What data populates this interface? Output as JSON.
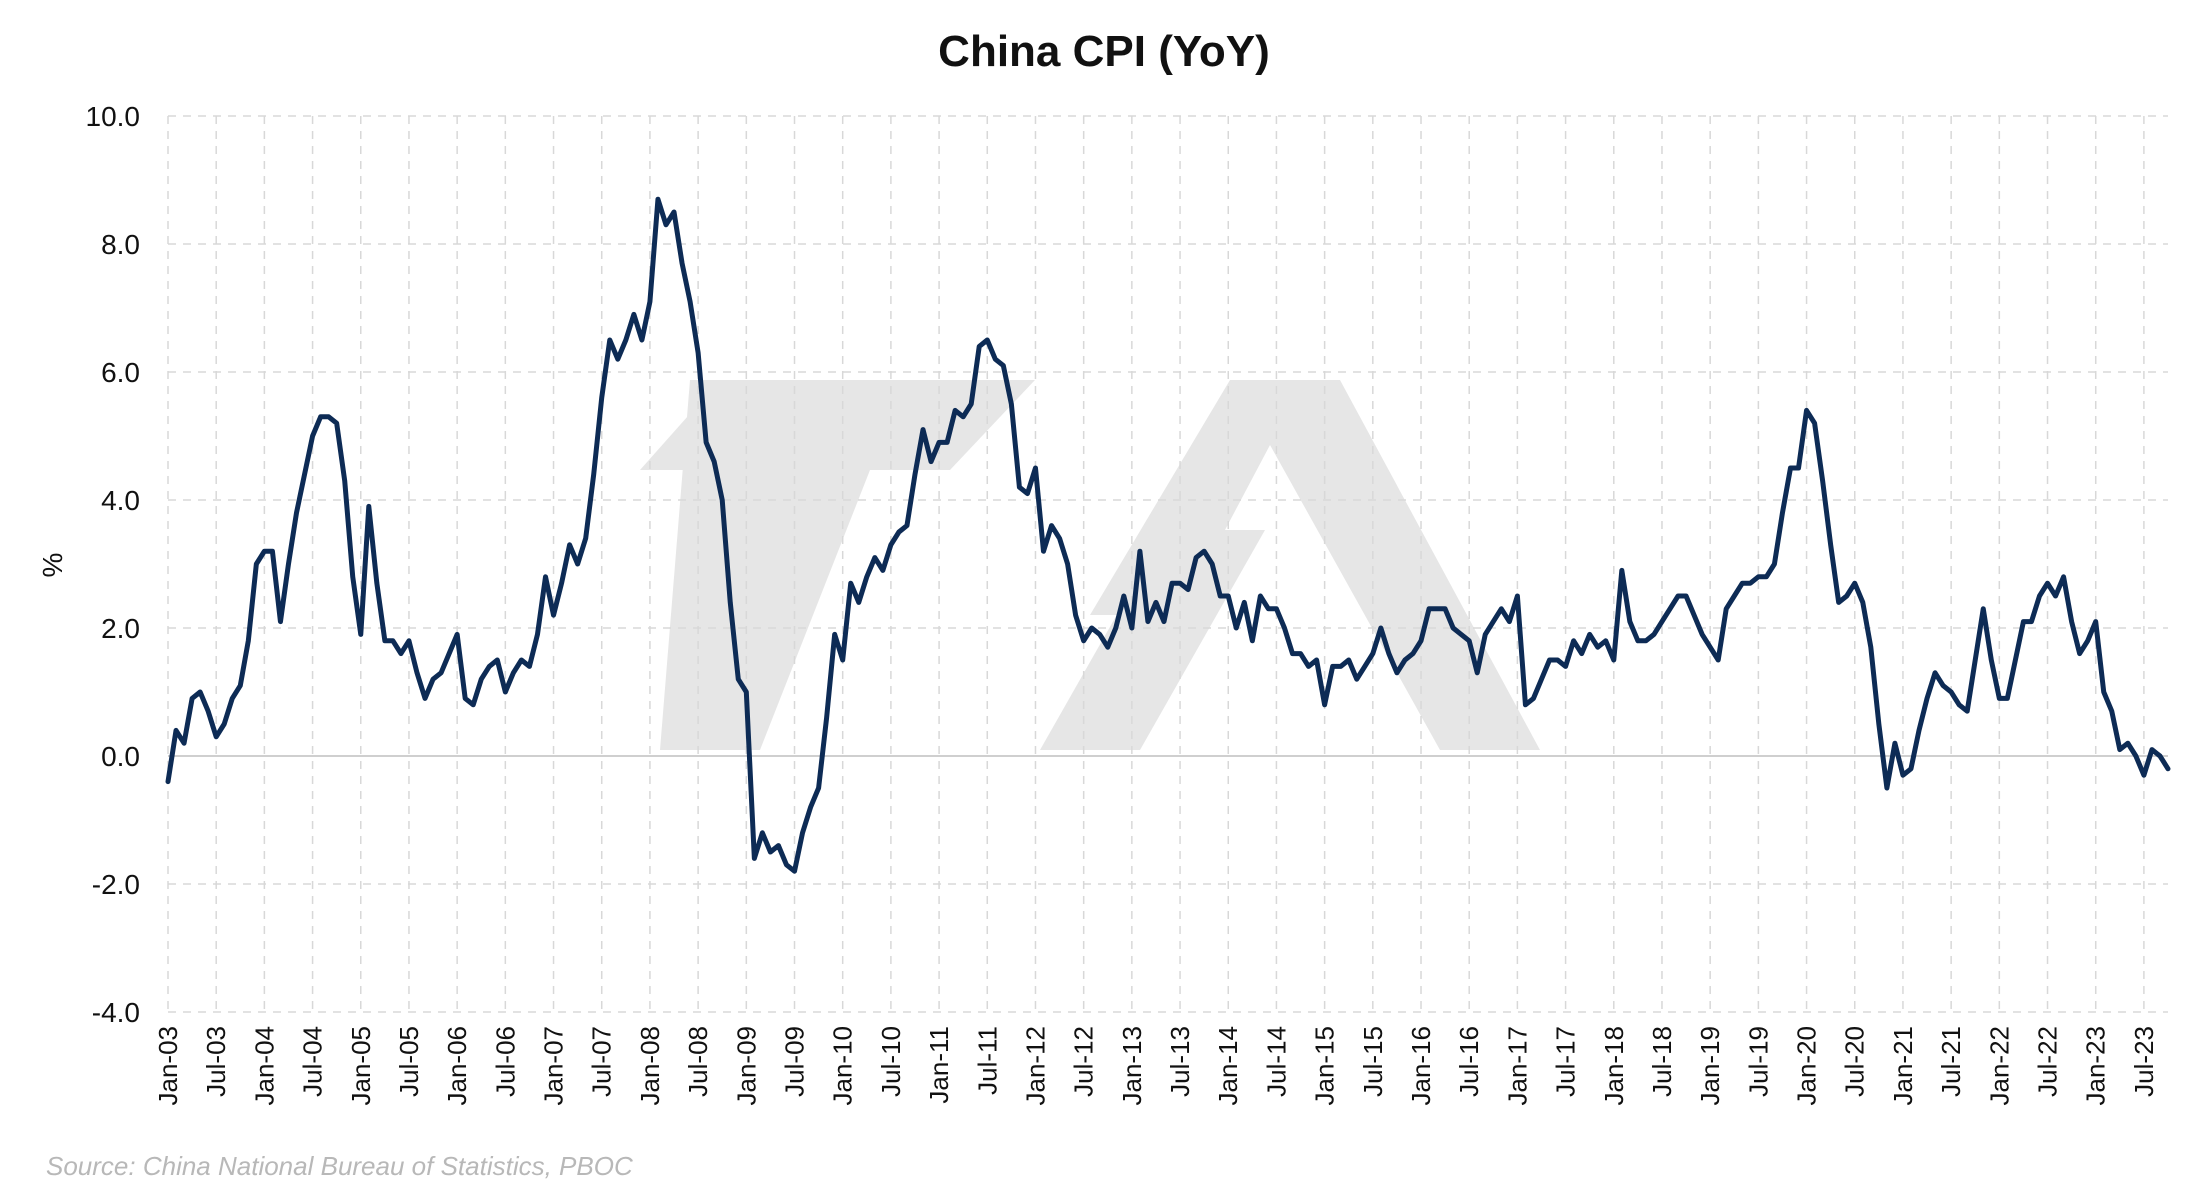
{
  "chart_data": {
    "type": "line",
    "title": "China CPI (YoY)",
    "ylabel": "%",
    "xlabel": "",
    "ylim": [
      -4,
      10
    ],
    "yticks": [
      -4,
      -2,
      0,
      2,
      4,
      6,
      8,
      10
    ],
    "ytick_labels": [
      "-4.0",
      "-2.0",
      "0.0",
      "2.0",
      "4.0",
      "6.0",
      "8.0",
      "10.0"
    ],
    "xtick_labels": [
      "Jan-03",
      "Jul-03",
      "Jan-04",
      "Jul-04",
      "Jan-05",
      "Jul-05",
      "Jan-06",
      "Jul-06",
      "Jan-07",
      "Jul-07",
      "Jan-08",
      "Jul-08",
      "Jan-09",
      "Jul-09",
      "Jan-10",
      "Jul-10",
      "Jan-11",
      "Jul-11",
      "Jan-12",
      "Jul-12",
      "Jan-13",
      "Jul-13",
      "Jan-14",
      "Jul-14",
      "Jan-15",
      "Jul-15",
      "Jan-16",
      "Jul-16",
      "Jan-17",
      "Jul-17",
      "Jan-18",
      "Jul-18",
      "Jan-19",
      "Jul-19",
      "Jan-20",
      "Jul-20",
      "Jan-21",
      "Jul-21",
      "Jan-22",
      "Jul-22",
      "Jan-23",
      "Jul-23"
    ],
    "x_start": "Jan-03",
    "x_end": "Oct-23",
    "grid": true,
    "legend": "none",
    "line_color": "#0d2b55",
    "series": [
      {
        "values": [
          -0.4,
          0.4,
          0.2,
          0.9,
          1.0,
          0.7,
          0.3,
          0.5,
          0.9,
          1.1,
          1.8,
          3.0,
          3.2,
          3.2,
          2.1,
          3.0,
          3.8,
          4.4,
          5.0,
          5.3,
          5.3,
          5.2,
          4.3,
          2.8,
          1.9,
          3.9,
          2.7,
          1.8,
          1.8,
          1.6,
          1.8,
          1.3,
          0.9,
          1.2,
          1.3,
          1.6,
          1.9,
          0.9,
          0.8,
          1.2,
          1.4,
          1.5,
          1.0,
          1.3,
          1.5,
          1.4,
          1.9,
          2.8,
          2.2,
          2.7,
          3.3,
          3.0,
          3.4,
          4.4,
          5.6,
          6.5,
          6.2,
          6.5,
          6.9,
          6.5,
          7.1,
          8.7,
          8.3,
          8.5,
          7.7,
          7.1,
          6.3,
          4.9,
          4.6,
          4.0,
          2.4,
          1.2,
          1.0,
          -1.6,
          -1.2,
          -1.5,
          -1.4,
          -1.7,
          -1.8,
          -1.2,
          -0.8,
          -0.5,
          0.6,
          1.9,
          1.5,
          2.7,
          2.4,
          2.8,
          3.1,
          2.9,
          3.3,
          3.5,
          3.6,
          4.4,
          5.1,
          4.6,
          4.9,
          4.9,
          5.4,
          5.3,
          5.5,
          6.4,
          6.5,
          6.2,
          6.1,
          5.5,
          4.2,
          4.1,
          4.5,
          3.2,
          3.6,
          3.4,
          3.0,
          2.2,
          1.8,
          2.0,
          1.9,
          1.7,
          2.0,
          2.5,
          2.0,
          3.2,
          2.1,
          2.4,
          2.1,
          2.7,
          2.7,
          2.6,
          3.1,
          3.2,
          3.0,
          2.5,
          2.5,
          2.0,
          2.4,
          1.8,
          2.5,
          2.3,
          2.3,
          2.0,
          1.6,
          1.6,
          1.4,
          1.5,
          0.8,
          1.4,
          1.4,
          1.5,
          1.2,
          1.4,
          1.6,
          2.0,
          1.6,
          1.3,
          1.5,
          1.6,
          1.8,
          2.3,
          2.3,
          2.3,
          2.0,
          1.9,
          1.8,
          1.3,
          1.9,
          2.1,
          2.3,
          2.1,
          2.5,
          0.8,
          0.9,
          1.2,
          1.5,
          1.5,
          1.4,
          1.8,
          1.6,
          1.9,
          1.7,
          1.8,
          1.5,
          2.9,
          2.1,
          1.8,
          1.8,
          1.9,
          2.1,
          2.3,
          2.5,
          2.5,
          2.2,
          1.9,
          1.7,
          1.5,
          2.3,
          2.5,
          2.7,
          2.7,
          2.8,
          2.8,
          3.0,
          3.8,
          4.5,
          4.5,
          5.4,
          5.2,
          4.3,
          3.3,
          2.4,
          2.5,
          2.7,
          2.4,
          1.7,
          0.5,
          -0.5,
          0.2,
          -0.3,
          -0.2,
          0.4,
          0.9,
          1.3,
          1.1,
          1.0,
          0.8,
          0.7,
          1.5,
          2.3,
          1.5,
          0.9,
          0.9,
          1.5,
          2.1,
          2.1,
          2.5,
          2.7,
          2.5,
          2.8,
          2.1,
          1.6,
          1.8,
          2.1,
          1.0,
          0.7,
          0.1,
          0.2,
          0.0,
          -0.3,
          0.1,
          0.0,
          -0.2
        ]
      }
    ]
  },
  "source_note": "Source: China National Bureau of Statistics, PBOC"
}
